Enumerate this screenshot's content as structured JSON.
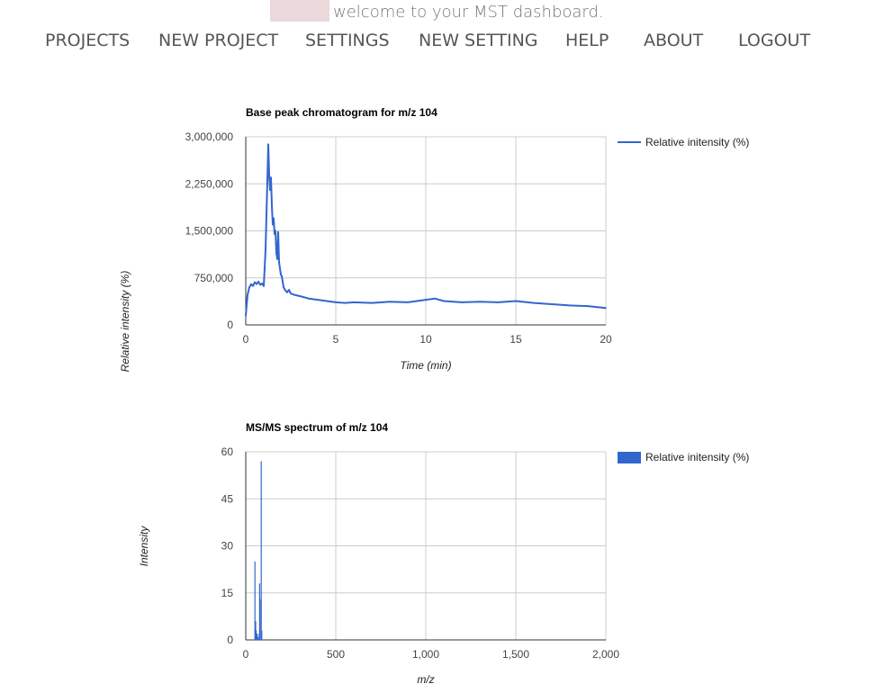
{
  "header": {
    "welcome_text": "welcome to your MST dashboard."
  },
  "nav": {
    "items": [
      "PROJECTS",
      "NEW PROJECT",
      "SETTINGS",
      "NEW SETTING",
      "HELP",
      "ABOUT",
      "LOGOUT"
    ]
  },
  "colors": {
    "series": "#3366cc",
    "grid": "#cccccc",
    "user_box": "#ead8db"
  },
  "chart_data": [
    {
      "type": "line",
      "title": "Base peak chromatogram for m/z 104",
      "xlabel": "Time (min)",
      "ylabel": "Relative intensity (%)",
      "xlim": [
        0,
        20
      ],
      "ylim": [
        0,
        3000000
      ],
      "x_ticks": [
        "0",
        "5",
        "10",
        "15",
        "20"
      ],
      "y_ticks": [
        "0",
        "750,000",
        "1,500,000",
        "2,250,000",
        "3,000,000"
      ],
      "legend": "right",
      "grid": true,
      "series": [
        {
          "name": "Relative initensity (%)",
          "x": [
            0,
            0.1,
            0.2,
            0.3,
            0.4,
            0.5,
            0.6,
            0.7,
            0.8,
            0.9,
            1.0,
            1.1,
            1.2,
            1.25,
            1.3,
            1.35,
            1.4,
            1.45,
            1.5,
            1.55,
            1.6,
            1.65,
            1.7,
            1.75,
            1.8,
            1.85,
            1.9,
            1.95,
            2.0,
            2.1,
            2.2,
            2.3,
            2.4,
            2.5,
            2.7,
            3.0,
            3.5,
            4.0,
            4.5,
            5.0,
            5.5,
            6.0,
            7.0,
            8.0,
            9.0,
            10.0,
            10.5,
            11.0,
            12.0,
            13.0,
            14.0,
            15.0,
            16.0,
            17.0,
            18.0,
            19.0,
            20.0
          ],
          "y": [
            150000,
            480000,
            600000,
            650000,
            620000,
            680000,
            650000,
            690000,
            640000,
            660000,
            620000,
            1200000,
            2300000,
            2880000,
            2400000,
            2150000,
            2350000,
            1900000,
            1600000,
            1700000,
            1450000,
            1500000,
            1150000,
            1050000,
            1480000,
            1000000,
            900000,
            800000,
            780000,
            600000,
            550000,
            520000,
            560000,
            500000,
            480000,
            460000,
            420000,
            400000,
            380000,
            360000,
            350000,
            360000,
            350000,
            370000,
            360000,
            400000,
            420000,
            380000,
            360000,
            370000,
            360000,
            380000,
            350000,
            330000,
            310000,
            300000,
            270000
          ]
        }
      ]
    },
    {
      "type": "bar",
      "title": "MS/MS spectrum of m/z 104",
      "xlabel": "m/z",
      "ylabel": "Intensity",
      "xlim": [
        0,
        2000
      ],
      "ylim": [
        0,
        60
      ],
      "x_ticks": [
        "0",
        "500",
        "1,000",
        "1,500",
        "2,000"
      ],
      "y_ticks": [
        "0",
        "15",
        "30",
        "45",
        "60"
      ],
      "legend": "right",
      "grid": true,
      "series": [
        {
          "name": "Relative initensity (%)",
          "x": [
            51,
            55,
            58,
            63,
            65,
            68,
            75,
            77,
            78,
            79,
            86,
            89
          ],
          "y": [
            25,
            6,
            3,
            2,
            1,
            1,
            2,
            18,
            12,
            13,
            57,
            3
          ]
        }
      ]
    }
  ]
}
